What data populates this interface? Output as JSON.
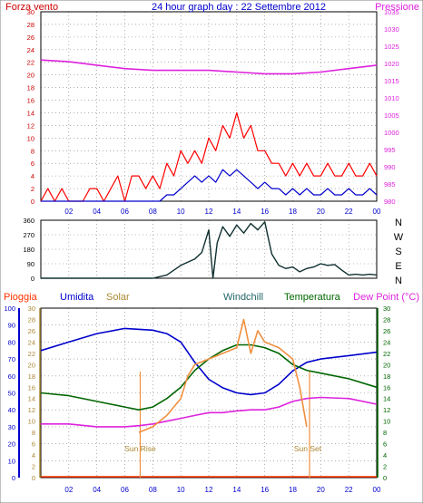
{
  "header": {
    "left_label": "Forza vento",
    "title": "24 hour graph day : 22 Settembre 2012",
    "right_label": "Pressione"
  },
  "colors": {
    "wind_axis": "#cc0000",
    "wind_gust": "#ff0000",
    "wind_avg": "#0000cc",
    "pressure": "#dd22dd",
    "direction": "#103030",
    "rain": "#ff3300",
    "humidity": "#0000cc",
    "solar": "#aa8833",
    "windchill": "#226666",
    "temperature": "#006600",
    "dewpoint": "#dd22dd",
    "temp_orange": "#f09040",
    "grid": "#808080"
  },
  "chart_data": [
    {
      "type": "line",
      "title": "24 hour graph day : 22 Settembre 2012",
      "ylabel_left": "Forza vento",
      "ylabel_right": "Pressione",
      "x_ticks": [
        "02",
        "04",
        "06",
        "08",
        "10",
        "12",
        "14",
        "16",
        "18",
        "20",
        "22",
        "00"
      ],
      "xlim": [
        0,
        24
      ],
      "ylim_left": [
        0,
        30
      ],
      "ylim_right": [
        980,
        1035
      ],
      "yticks_left": [
        0,
        2,
        4,
        6,
        8,
        10,
        12,
        14,
        16,
        18,
        20,
        22,
        24,
        26,
        28,
        30
      ],
      "yticks_right": [
        980,
        985,
        990,
        995,
        1000,
        1005,
        1010,
        1015,
        1020,
        1025,
        1030,
        1035
      ],
      "series": [
        {
          "key": "gust",
          "axis": "left",
          "x": [
            0.0,
            0.5,
            1.0,
            1.5,
            2.0,
            2.5,
            3.0,
            3.5,
            4.0,
            4.5,
            5.0,
            5.5,
            6.0,
            6.5,
            7.0,
            7.5,
            8.0,
            8.5,
            9.0,
            9.5,
            10.0,
            10.5,
            11.0,
            11.5,
            12.0,
            12.5,
            13.0,
            13.5,
            14.0,
            14.5,
            15.0,
            15.5,
            16.0,
            16.5,
            17.0,
            17.5,
            18.0,
            18.5,
            19.0,
            19.5,
            20.0,
            20.5,
            21.0,
            21.5,
            22.0,
            22.5,
            23.0,
            23.5,
            24.0
          ],
          "y": [
            0,
            2,
            0,
            2,
            0,
            0,
            0,
            2,
            2,
            0,
            2,
            4,
            0,
            4,
            4,
            2,
            4,
            2,
            6,
            4,
            8,
            6,
            8,
            6,
            10,
            8,
            12,
            10,
            14,
            10,
            12,
            8,
            8,
            6,
            6,
            4,
            6,
            4,
            6,
            4,
            4,
            6,
            4,
            4,
            6,
            4,
            4,
            6,
            4
          ]
        },
        {
          "key": "average",
          "axis": "left",
          "x": [
            0.0,
            0.5,
            1.0,
            1.5,
            2.0,
            2.5,
            3.0,
            3.5,
            4.0,
            4.5,
            5.0,
            5.5,
            6.0,
            6.5,
            7.0,
            7.5,
            8.0,
            8.5,
            9.0,
            9.5,
            10.0,
            10.5,
            11.0,
            11.5,
            12.0,
            12.5,
            13.0,
            13.5,
            14.0,
            14.5,
            15.0,
            15.5,
            16.0,
            16.5,
            17.0,
            17.5,
            18.0,
            18.5,
            19.0,
            19.5,
            20.0,
            20.5,
            21.0,
            21.5,
            22.0,
            22.5,
            23.0,
            23.5,
            24.0
          ],
          "y": [
            0,
            0,
            0,
            0,
            0,
            0,
            0,
            0,
            0,
            0,
            0,
            0,
            0,
            0,
            0,
            0,
            0,
            0,
            1,
            1,
            2,
            3,
            4,
            3,
            4,
            3,
            5,
            4,
            5,
            4,
            3,
            2,
            3,
            2,
            2,
            1,
            2,
            1,
            2,
            1,
            1,
            2,
            1,
            1,
            2,
            1,
            1,
            2,
            1
          ]
        },
        {
          "key": "pressure",
          "axis": "right",
          "x": [
            0,
            2,
            4,
            6,
            8,
            10,
            12,
            14,
            16,
            18,
            20,
            22,
            24
          ],
          "y": [
            1021,
            1020.5,
            1019.5,
            1018.5,
            1018,
            1018,
            1018,
            1017.5,
            1017,
            1017,
            1017.5,
            1018.5,
            1019.5
          ]
        }
      ]
    },
    {
      "type": "line",
      "ylabel_right": [
        "N",
        "W",
        "S",
        "E",
        "N"
      ],
      "xlim": [
        0,
        24
      ],
      "ylim": [
        0,
        360
      ],
      "yticks": [
        0,
        90,
        180,
        270,
        360
      ],
      "series": [
        {
          "key": "direction",
          "x": [
            0,
            2,
            4,
            6,
            8,
            9,
            10,
            11,
            11.5,
            12,
            12.3,
            12.6,
            13,
            13.5,
            14,
            14.5,
            15,
            15.5,
            16,
            16.5,
            17,
            17.5,
            18,
            18.5,
            19,
            19.5,
            20,
            20.5,
            21,
            21.5,
            22,
            22.5,
            23,
            23.5,
            24
          ],
          "y": [
            0,
            0,
            0,
            0,
            0,
            20,
            80,
            120,
            160,
            300,
            0,
            220,
            320,
            260,
            330,
            280,
            340,
            300,
            350,
            150,
            80,
            60,
            70,
            40,
            60,
            70,
            90,
            80,
            85,
            50,
            20,
            25,
            20,
            25,
            20
          ]
        }
      ]
    },
    {
      "type": "line",
      "labels": [
        "Pioggia",
        "Umidita",
        "Solar",
        "Windchill",
        "Temperatura",
        "Dew Point (°C)"
      ],
      "annotations": [
        "Sun Rise",
        "Sun Set"
      ],
      "xlim": [
        0,
        24
      ],
      "ylim_left": [
        0,
        100
      ],
      "ylim_solar": [
        0,
        30
      ],
      "ylim_right": [
        0,
        30
      ],
      "yticks_left": [
        0,
        10,
        20,
        30,
        40,
        50,
        60,
        70,
        80,
        90,
        100
      ],
      "yticks_solar": [
        0,
        2,
        4,
        6,
        8,
        10,
        12,
        14,
        16,
        18,
        20,
        22,
        24,
        26,
        28,
        30
      ],
      "yticks_right": [
        0,
        2,
        4,
        6,
        8,
        10,
        12,
        14,
        16,
        18,
        20,
        22,
        24,
        26,
        28,
        30
      ],
      "sunrise_hour": 7.1,
      "sunset_hour": 19.2,
      "series": [
        {
          "key": "humidity",
          "axis": "left",
          "x": [
            0,
            2,
            4,
            6,
            8,
            9,
            10,
            11,
            12,
            13,
            14,
            15,
            16,
            17,
            18,
            19,
            20,
            22,
            24
          ],
          "y": [
            75,
            80,
            85,
            88,
            87,
            85,
            80,
            68,
            58,
            53,
            50,
            49,
            50,
            55,
            63,
            68,
            70,
            72,
            74
          ]
        },
        {
          "key": "temperature",
          "axis": "right",
          "x": [
            0,
            2,
            4,
            6,
            7,
            8,
            9,
            10,
            11,
            12,
            13,
            14,
            15,
            16,
            17,
            18,
            19,
            20,
            22,
            24
          ],
          "y": [
            15,
            14.5,
            13.5,
            12.5,
            12,
            12.5,
            14,
            16,
            19,
            21,
            22.5,
            23.5,
            23.5,
            23,
            22,
            20,
            19,
            18.5,
            17.5,
            16
          ]
        },
        {
          "key": "dewpoint",
          "axis": "right",
          "x": [
            0,
            2,
            4,
            6,
            7,
            8,
            9,
            10,
            11,
            12,
            13,
            14,
            15,
            16,
            17,
            18,
            19,
            20,
            22,
            24
          ],
          "y": [
            9.5,
            9.5,
            9,
            9,
            9.2,
            9.5,
            10,
            10.5,
            11,
            11.5,
            11.5,
            11.8,
            12,
            12,
            12.5,
            13.5,
            14,
            14.2,
            14,
            13
          ]
        },
        {
          "key": "temp_orange",
          "axis": "right",
          "x": [
            7,
            8,
            9,
            10,
            10.5,
            11,
            12,
            13,
            14,
            14.5,
            15,
            15.5,
            16,
            17,
            18,
            18.5,
            19
          ],
          "y": [
            8,
            9,
            11,
            14,
            18,
            20,
            21,
            22,
            23,
            28,
            22,
            26,
            24,
            23,
            21,
            16,
            9
          ]
        }
      ]
    }
  ]
}
